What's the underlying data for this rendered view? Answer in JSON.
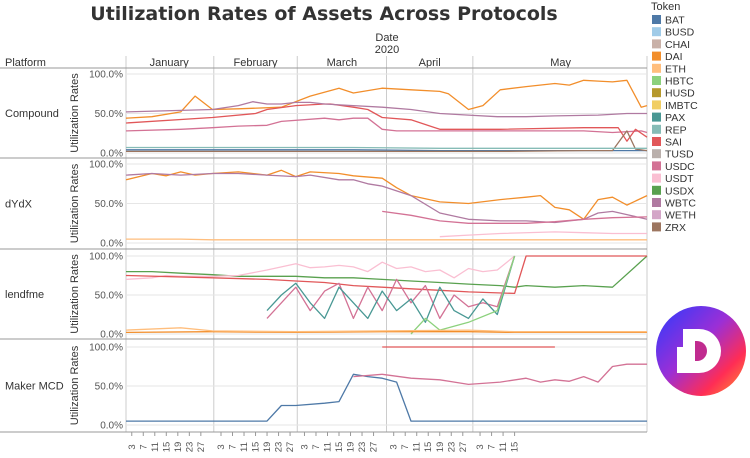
{
  "chart_data": {
    "type": "line",
    "title": "Utilization Rates of Assets Across Protocols",
    "column_header": "Date",
    "column_subheader": "2020",
    "row_header": "Platform",
    "ylabel": "Utilization Rates",
    "ylim": [
      0,
      100
    ],
    "y_ticks": [
      "0.0%",
      "50.0%",
      "100.0%"
    ],
    "months": [
      "January",
      "February",
      "March",
      "April",
      "May"
    ],
    "x_ticks": [
      "3",
      "7",
      "11",
      "15",
      "19",
      "23",
      "27",
      "3",
      "7",
      "11",
      "15",
      "19",
      "23",
      "27",
      "3",
      "7",
      "11",
      "15",
      "19",
      "23",
      "27",
      "3",
      "7",
      "11",
      "15",
      "19",
      "23",
      "27",
      "3",
      "7",
      "11",
      "15"
    ],
    "legend_title": "Token",
    "tokens": [
      {
        "name": "BAT",
        "color": "#4e79a7"
      },
      {
        "name": "BUSD",
        "color": "#a0cbe8"
      },
      {
        "name": "CHAI",
        "color": "#c9b1a8"
      },
      {
        "name": "DAI",
        "color": "#f28e2b"
      },
      {
        "name": "ETH",
        "color": "#ffbe7d"
      },
      {
        "name": "HBTC",
        "color": "#8cd17d"
      },
      {
        "name": "HUSD",
        "color": "#b6992d"
      },
      {
        "name": "IMBTC",
        "color": "#f1ce63"
      },
      {
        "name": "PAX",
        "color": "#499894"
      },
      {
        "name": "REP",
        "color": "#86bcb6"
      },
      {
        "name": "SAI",
        "color": "#e15759"
      },
      {
        "name": "TUSD",
        "color": "#bab0ac"
      },
      {
        "name": "USDC",
        "color": "#d37295"
      },
      {
        "name": "USDT",
        "color": "#fabfd2"
      },
      {
        "name": "USDX",
        "color": "#59a14f"
      },
      {
        "name": "WBTC",
        "color": "#b07aa1"
      },
      {
        "name": "WETH",
        "color": "#d4a6c8"
      },
      {
        "name": "ZRX",
        "color": "#9d7660"
      }
    ],
    "panels": [
      {
        "platform": "Compound",
        "series": [
          {
            "token": "DAI",
            "x": [
              1,
              10,
              20,
              25,
              31,
              40,
              55,
              65,
              75,
              80,
              90,
              100,
              110,
              113,
              120,
              125,
              131,
              140,
              150,
              155,
              160,
              165,
              170,
              175,
              180,
              182
            ],
            "y": [
              44,
              46,
              52,
              72,
              55,
              56,
              58,
              72,
              82,
              76,
              82,
              80,
              78,
              75,
              55,
              60,
              80,
              84,
              88,
              86,
              92,
              91,
              90,
              92,
              58,
              60
            ]
          },
          {
            "token": "USDC",
            "x": [
              1,
              20,
              31,
              40,
              50,
              55,
              70,
              75,
              80,
              85,
              90,
              95,
              100,
              110,
              120,
              131,
              150,
              160,
              170,
              180,
              182
            ],
            "y": [
              28,
              30,
              32,
              34,
              35,
              40,
              44,
              42,
              44,
              44,
              30,
              28,
              28,
              28,
              28,
              28,
              28,
              28,
              26,
              28,
              26
            ]
          },
          {
            "token": "SAI",
            "x": [
              1,
              31,
              46,
              50,
              60,
              70,
              72,
              80,
              85,
              90,
              100,
              110,
              120,
              131,
              160,
              172,
              175,
              178,
              182
            ],
            "y": [
              38,
              45,
              50,
              55,
              60,
              62,
              62,
              58,
              55,
              45,
              42,
              30,
              30,
              30,
              32,
              32,
              15,
              30,
              20
            ]
          },
          {
            "token": "WBTC",
            "x": [
              1,
              31,
              40,
              45,
              50,
              55,
              60,
              65,
              70,
              80,
              90,
              100,
              110,
              120,
              130,
              140,
              150,
              165,
              175,
              182
            ],
            "y": [
              52,
              55,
              60,
              65,
              62,
              62,
              64,
              64,
              62,
              60,
              58,
              55,
              50,
              48,
              46,
              46,
              47,
              48,
              50,
              50
            ]
          },
          {
            "token": "BAT",
            "x": [
              1,
              40,
              80,
              110,
              130,
              160,
              182
            ],
            "y": [
              4,
              4,
              4,
              3,
              3,
              3,
              3
            ]
          },
          {
            "token": "ZRX",
            "x": [
              1,
              40,
              80,
              110,
              130,
              160,
              170,
              175,
              178,
              182
            ],
            "y": [
              2,
              2,
              2,
              2,
              2,
              3,
              3,
              28,
              5,
              3
            ]
          },
          {
            "token": "REP",
            "x": [
              1,
              40,
              80,
              110,
              130,
              160,
              182
            ],
            "y": [
              7,
              7,
              7,
              6,
              6,
              6,
              6
            ]
          }
        ]
      },
      {
        "platform": "dYdX",
        "series": [
          {
            "token": "DAI",
            "x": [
              1,
              10,
              15,
              20,
              25,
              31,
              40,
              50,
              55,
              60,
              65,
              75,
              80,
              90,
              95,
              100,
              110,
              120,
              131,
              140,
              145,
              150,
              155,
              160,
              165,
              170,
              175,
              182
            ],
            "y": [
              80,
              88,
              85,
              90,
              86,
              88,
              90,
              86,
              92,
              84,
              90,
              88,
              85,
              82,
              70,
              60,
              52,
              50,
              55,
              58,
              60,
              45,
              42,
              30,
              55,
              58,
              48,
              60
            ]
          },
          {
            "token": "WBTC",
            "x": [
              1,
              10,
              20,
              31,
              40,
              50,
              60,
              65,
              75,
              80,
              85,
              90,
              100,
              110,
              120,
              131,
              140,
              150,
              155,
              160,
              165,
              170,
              175,
              182
            ],
            "y": [
              86,
              88,
              86,
              88,
              88,
              86,
              84,
              86,
              80,
              80,
              75,
              72,
              60,
              38,
              30,
              28,
              28,
              26,
              28,
              30,
              38,
              40,
              36,
              30
            ]
          },
          {
            "token": "USDC",
            "x": [
              90,
              100,
              110,
              120,
              131,
              140,
              150,
              160,
              170,
              182
            ],
            "y": [
              40,
              35,
              28,
              25,
              25,
              25,
              27,
              30,
              32,
              33
            ]
          },
          {
            "token": "USDT",
            "x": [
              110,
              120,
              131,
              150,
              160,
              170,
              182
            ],
            "y": [
              8,
              10,
              12,
              14,
              13,
              12,
              12
            ]
          },
          {
            "token": "ETH",
            "x": [
              1,
              20,
              31,
              60,
              80,
              100,
              120,
              140,
              160,
              182
            ],
            "y": [
              5,
              5,
              4,
              4,
              4,
              4,
              4,
              4,
              4,
              4
            ]
          }
        ]
      },
      {
        "platform": "lendfme",
        "series": [
          {
            "token": "USDX",
            "x": [
              1,
              10,
              20,
              31,
              40,
              50,
              60,
              70,
              80,
              90,
              100,
              110,
              120,
              131,
              136,
              140,
              150,
              160,
              170,
              182
            ],
            "y": [
              80,
              80,
              78,
              76,
              74,
              74,
              74,
              72,
              72,
              70,
              68,
              66,
              64,
              62,
              60,
              62,
              60,
              62,
              60,
              100
            ]
          },
          {
            "token": "USDT",
            "x": [
              1,
              10,
              15,
              20,
              31,
              40,
              50,
              60,
              65,
              70,
              75,
              80,
              85,
              90,
              95,
              100,
              105,
              110,
              115,
              120,
              125,
              130,
              136
            ],
            "y": [
              70,
              72,
              75,
              74,
              74,
              75,
              82,
              90,
              85,
              86,
              88,
              86,
              80,
              92,
              84,
              86,
              80,
              82,
              72,
              84,
              80,
              82,
              100
            ]
          },
          {
            "token": "SAI",
            "x": [
              1,
              31,
              50,
              60,
              70,
              80,
              90,
              100,
              110,
              120,
              136,
              140,
              150,
              160,
              170,
              182
            ],
            "y": [
              75,
              72,
              70,
              68,
              66,
              62,
              60,
              58,
              56,
              54,
              52,
              100,
              100,
              100,
              100,
              100
            ]
          },
          {
            "token": "USDC",
            "x": [
              50,
              55,
              60,
              65,
              70,
              75,
              80,
              85,
              90,
              95,
              100,
              105,
              110,
              115,
              120,
              125,
              130,
              136
            ],
            "y": [
              20,
              40,
              60,
              30,
              55,
              65,
              20,
              60,
              30,
              70,
              40,
              62,
              20,
              50,
              35,
              40,
              35,
              100
            ]
          },
          {
            "token": "PAX",
            "x": [
              50,
              55,
              60,
              65,
              70,
              75,
              80,
              85,
              90,
              95,
              100,
              105,
              110,
              115,
              120,
              125,
              130,
              136
            ],
            "y": [
              30,
              50,
              65,
              40,
              20,
              60,
              40,
              20,
              55,
              30,
              45,
              15,
              60,
              30,
              20,
              45,
              25,
              100
            ]
          },
          {
            "token": "HBTC",
            "x": [
              100,
              105,
              110,
              120,
              130,
              136
            ],
            "y": [
              0,
              20,
              5,
              15,
              30,
              100
            ]
          },
          {
            "token": "DAI",
            "x": [
              1,
              31,
              60,
              90,
              120,
              136,
              150,
              182
            ],
            "y": [
              2,
              3,
              2,
              3,
              3,
              2,
              2,
              2
            ]
          },
          {
            "token": "ETH",
            "x": [
              1,
              20,
              31,
              60,
              90,
              120,
              136,
              182
            ],
            "y": [
              5,
              8,
              4,
              3,
              4,
              5,
              3,
              3
            ]
          }
        ]
      },
      {
        "platform": "Maker MCD",
        "series": [
          {
            "token": "BAT",
            "x": [
              1,
              31,
              50,
              55,
              60,
              70,
              75,
              80,
              85,
              90,
              95,
              100,
              110,
              120,
              131,
              140,
              160,
              182
            ],
            "y": [
              5,
              5,
              5,
              25,
              25,
              28,
              30,
              65,
              62,
              60,
              55,
              5,
              5,
              5,
              5,
              5,
              5,
              5
            ]
          },
          {
            "token": "SAI",
            "x": [
              90,
              110,
              120,
              131,
              150
            ],
            "y": [
              100,
              100,
              100,
              100,
              100
            ]
          },
          {
            "token": "USDC",
            "x": [
              80,
              90,
              100,
              110,
              120,
              131,
              140,
              145,
              150,
              155,
              160,
              165,
              170,
              175,
              182
            ],
            "y": [
              62,
              65,
              60,
              58,
              52,
              55,
              60,
              55,
              58,
              56,
              62,
              55,
              75,
              78,
              78
            ]
          }
        ]
      }
    ]
  }
}
